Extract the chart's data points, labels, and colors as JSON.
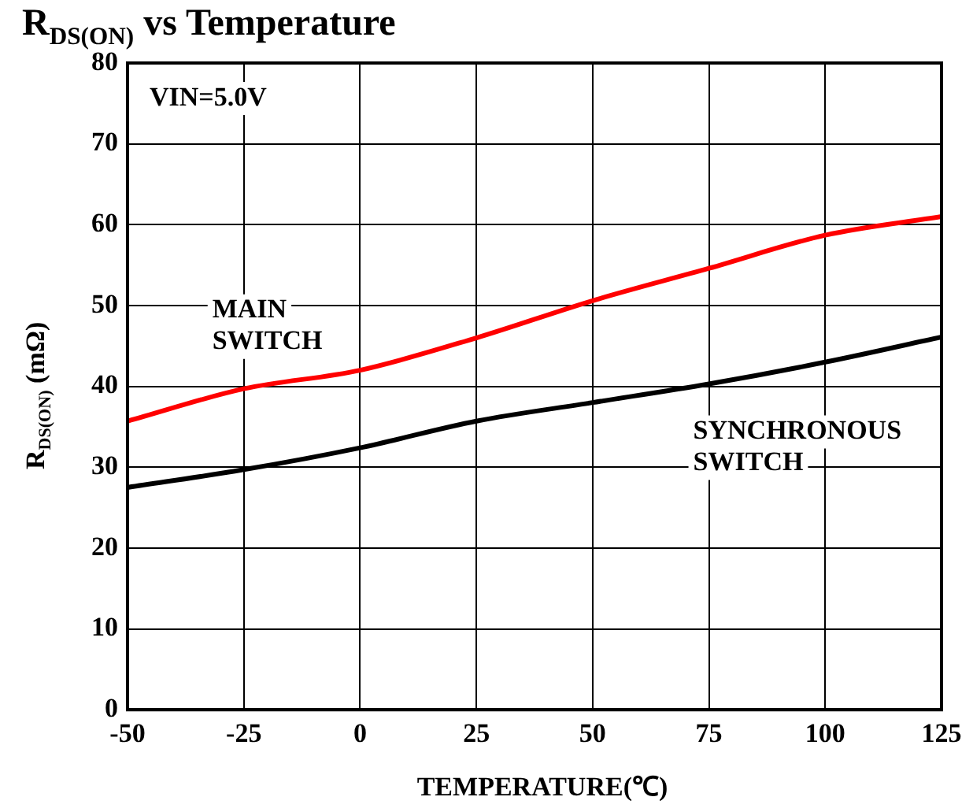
{
  "chart_data": {
    "type": "line",
    "title": "R$_{DS(ON)}$ vs Temperature",
    "xlabel": "TEMPERATURE(℃)",
    "ylabel": "R$_{DS(ON)}$ (mΩ)",
    "annotations": [
      "VIN=5.0V"
    ],
    "x": [
      -50,
      -25,
      0,
      25,
      50,
      75,
      100,
      125
    ],
    "series": [
      {
        "name": "MAIN SWITCH",
        "color": "#ff0000",
        "values": [
          35.7,
          39.7,
          42,
          46,
          50.6,
          54.6,
          58.7,
          61
        ]
      },
      {
        "name": "SYNCHRONOUS SWITCH",
        "color": "#000000",
        "values": [
          27.5,
          29.7,
          32.4,
          35.7,
          38,
          40.3,
          43,
          46.1
        ]
      }
    ],
    "xlim": [
      -50,
      125
    ],
    "xticks": [
      -50,
      -25,
      0,
      25,
      50,
      75,
      100,
      125
    ],
    "ylim": [
      0,
      80
    ],
    "yticks": [
      0,
      10,
      20,
      30,
      40,
      50,
      60,
      70,
      80
    ],
    "grid": true,
    "legend": false,
    "marker": "none",
    "line_style": "solid"
  }
}
